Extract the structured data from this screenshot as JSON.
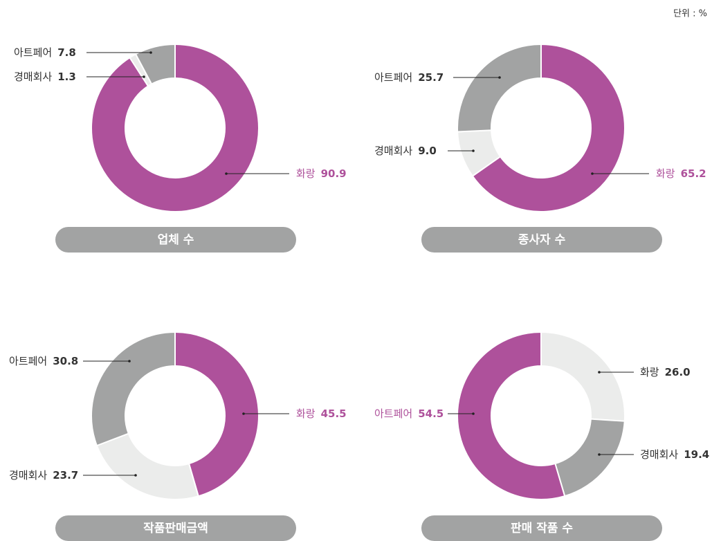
{
  "unit": "단위 : %",
  "chart_data": [
    {
      "type": "donut",
      "title": "업체 수",
      "categories": [
        "화랑",
        "경매회사",
        "아트페어"
      ],
      "values": [
        90.9,
        1.3,
        7.8
      ],
      "value_labels": [
        "90.9",
        "1.3",
        "7.8"
      ],
      "colors": [
        "#ae519b",
        "#ebeceb",
        "#a2a3a3"
      ],
      "label_colors": [
        "#ae519b",
        "#333333",
        "#333333"
      ]
    },
    {
      "type": "donut",
      "title": "종사자 수",
      "categories": [
        "화랑",
        "경매회사",
        "아트페어"
      ],
      "values": [
        65.2,
        9.0,
        25.7
      ],
      "value_labels": [
        "65.2",
        "9.0",
        "25.7"
      ],
      "colors": [
        "#ae519b",
        "#ebeceb",
        "#a2a3a3"
      ],
      "label_colors": [
        "#ae519b",
        "#333333",
        "#333333"
      ]
    },
    {
      "type": "donut",
      "title": "작품판매금액",
      "categories": [
        "화랑",
        "경매회사",
        "아트페어"
      ],
      "values": [
        45.5,
        23.7,
        30.8
      ],
      "value_labels": [
        "45.5",
        "23.7",
        "30.8"
      ],
      "colors": [
        "#ae519b",
        "#ebeceb",
        "#a2a3a3"
      ],
      "label_colors": [
        "#ae519b",
        "#333333",
        "#333333"
      ]
    },
    {
      "type": "donut",
      "title": "판매 작품 수",
      "categories": [
        "화랑",
        "경매회사",
        "아트페어"
      ],
      "values": [
        26.0,
        19.4,
        54.5
      ],
      "value_labels": [
        "26.0",
        "19.4",
        "54.5"
      ],
      "colors": [
        "#ebeceb",
        "#a2a3a3",
        "#ae519b"
      ],
      "label_colors": [
        "#333333",
        "#333333",
        "#ae519b"
      ]
    }
  ]
}
